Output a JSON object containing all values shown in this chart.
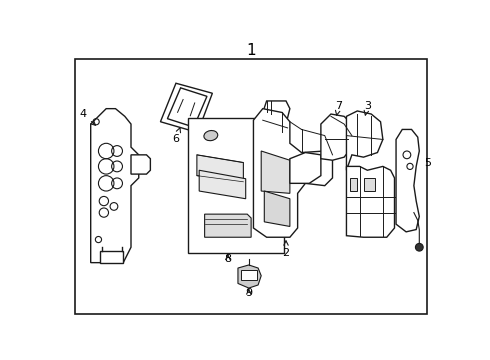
{
  "bg_color": "#ffffff",
  "line_color": "#1a1a1a",
  "text_color": "#000000",
  "fig_width": 4.9,
  "fig_height": 3.6,
  "dpi": 100
}
